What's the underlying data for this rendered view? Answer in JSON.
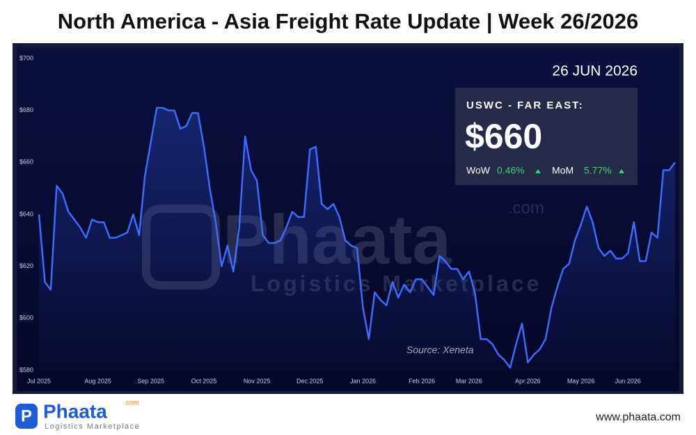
{
  "title": "North America - Asia Freight Rate Update | Week 26/2026",
  "chart_data": {
    "type": "line",
    "color": "#3d6bff",
    "grid": false,
    "categories": [
      "Jul 2025",
      null,
      null,
      null,
      null,
      null,
      null,
      null,
      null,
      null,
      "Aug 2025",
      null,
      null,
      null,
      null,
      null,
      null,
      null,
      null,
      "Sep 2025",
      null,
      null,
      null,
      null,
      null,
      null,
      null,
      null,
      "Oct 2025",
      null,
      null,
      null,
      null,
      null,
      null,
      null,
      null,
      "Nov 2025",
      null,
      null,
      null,
      null,
      null,
      null,
      null,
      null,
      "Dec 2025",
      null,
      null,
      null,
      null,
      null,
      null,
      null,
      null,
      "Jan 2026",
      null,
      null,
      null,
      null,
      null,
      null,
      null,
      null,
      null,
      "Feb 2026",
      null,
      null,
      null,
      null,
      null,
      null,
      null,
      "Mar 2026",
      null,
      null,
      null,
      null,
      null,
      null,
      null,
      null,
      null,
      "Apr 2026",
      null,
      null,
      null,
      null,
      null,
      null,
      null,
      null,
      "May 2026",
      null,
      null,
      null,
      null,
      null,
      null,
      null,
      "Jun 2026",
      null,
      null,
      null,
      null,
      null,
      null,
      null,
      null
    ],
    "values": [
      640,
      614,
      611,
      651,
      648,
      641,
      638,
      635,
      631,
      638,
      637,
      637,
      631,
      631,
      632,
      633,
      640,
      632,
      655,
      668,
      681,
      681,
      680,
      680,
      673,
      674,
      679,
      679,
      666,
      650,
      637,
      620,
      628,
      618,
      635,
      670,
      657,
      653,
      632,
      629,
      629,
      630,
      635,
      641,
      639,
      639,
      665,
      666,
      644,
      642,
      644,
      639,
      630,
      628,
      627,
      604,
      592,
      610,
      607,
      605,
      614,
      608,
      613,
      610,
      615,
      615,
      612,
      609,
      624,
      622,
      619,
      619,
      615,
      618,
      610,
      592,
      592,
      590,
      586,
      584,
      581,
      590,
      598,
      583,
      586,
      588,
      592,
      604,
      612,
      619,
      621,
      630,
      636,
      643,
      637,
      627,
      624,
      626,
      623,
      623,
      625,
      637,
      622,
      622,
      633,
      631,
      657,
      657,
      660
    ],
    "ylim": [
      580,
      700
    ],
    "yticks": [
      {
        "value": 580,
        "label": "$580"
      },
      {
        "value": 600,
        "label": "$600"
      },
      {
        "value": 620,
        "label": "$620"
      },
      {
        "value": 640,
        "label": "$640"
      },
      {
        "value": 660,
        "label": "$660"
      },
      {
        "value": 680,
        "label": "$680"
      },
      {
        "value": 700,
        "label": "$700"
      }
    ],
    "date_label": "26 JUN 2026",
    "route_label": "USWC - FAR EAST:",
    "current_rate": {
      "value": 660,
      "label": "$660"
    },
    "wow": {
      "name": "WoW",
      "value": 0.46,
      "label": "0.46%"
    },
    "mom": {
      "name": "MoM",
      "value": 5.77,
      "label": "5.77%"
    },
    "source": "Source: Xeneta"
  },
  "watermark": {
    "name": "Phaata",
    "suffix": ".com",
    "tagline": "Logistics Marketplace"
  },
  "footer": {
    "logo": "Phaata",
    "logo_suffix": ".com",
    "tagline": "Logistics Marketplace",
    "url": "www.phaata.com"
  }
}
